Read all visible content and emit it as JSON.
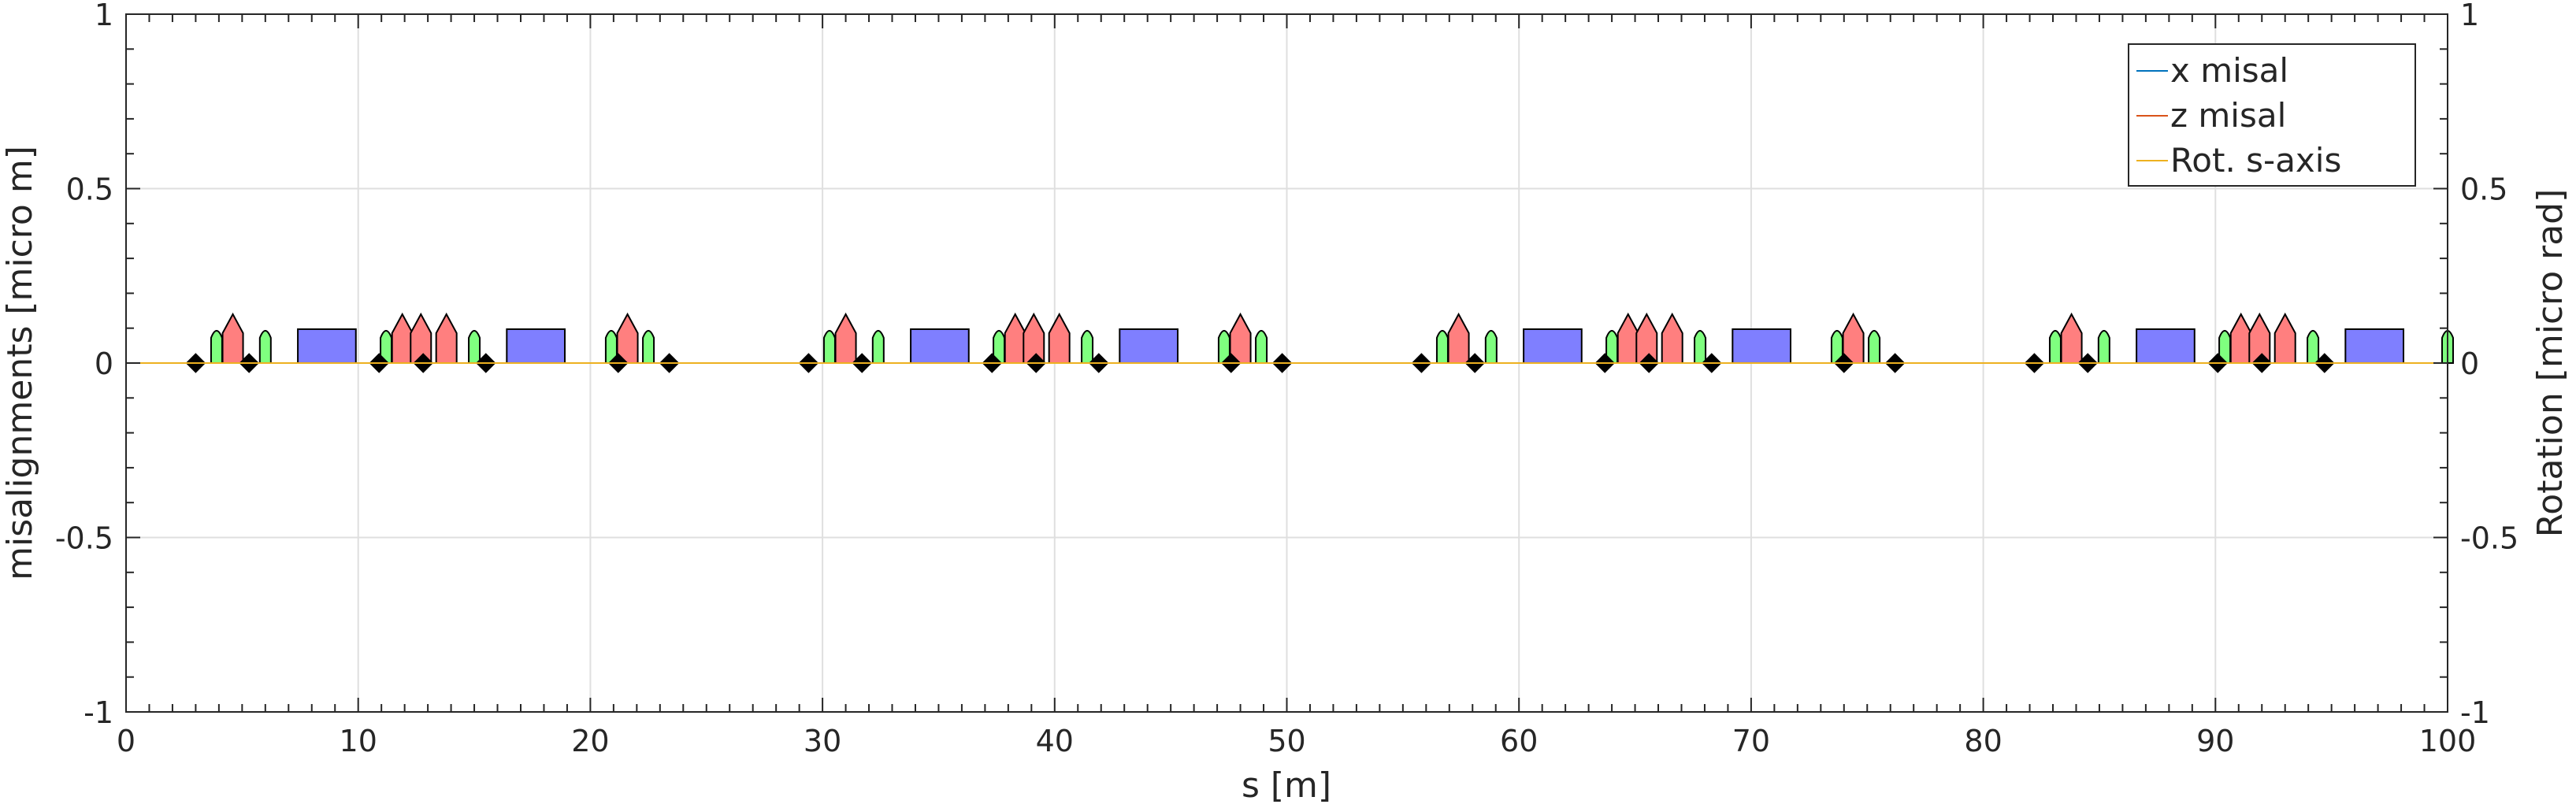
{
  "chart_data": {
    "type": "line",
    "xlabel": "s [m]",
    "ylabel_left": "misalignments [micro m]",
    "ylabel_right": "Rotation [micro rad]",
    "xlim": [
      0,
      100
    ],
    "ylim_left": [
      -1,
      1
    ],
    "ylim_right": [
      -1,
      1
    ],
    "xticks": [
      0,
      10,
      20,
      30,
      40,
      50,
      60,
      70,
      80,
      90,
      100
    ],
    "xtick_labels": [
      "0",
      "10",
      "20",
      "30",
      "40",
      "50",
      "60",
      "70",
      "80",
      "90",
      "100"
    ],
    "yticks": [
      1,
      0.5,
      0,
      -0.5,
      -1
    ],
    "ytick_labels_left": [
      "1",
      "0.5",
      "0",
      "-0.5",
      "-1"
    ],
    "ytick_labels_right": [
      "1",
      "0.5",
      "0",
      "-0.5",
      "-1"
    ],
    "grid": true,
    "legend_position": "top-right",
    "series": [
      {
        "name": "x misal",
        "color": "#0072bd",
        "x": [
          0,
          100
        ],
        "y": [
          0,
          0
        ]
      },
      {
        "name": "z misal",
        "color": "#d95319",
        "x": [
          0,
          100
        ],
        "y": [
          0,
          0
        ]
      },
      {
        "name": "Rot. s-axis",
        "color": "#edb120",
        "x": [
          0,
          100
        ],
        "y": [
          0,
          0
        ]
      }
    ],
    "lattice": {
      "colors": {
        "dipole": "#7f7fff",
        "quadrupole": "#ff7f7f",
        "sextupole": "#7fff7f",
        "monitor": "#000000"
      },
      "dipoles": [
        7.4,
        16.4,
        33.8,
        42.8,
        60.2,
        69.2,
        86.6,
        95.6
      ],
      "quadrupoles": [
        4.6,
        11.9,
        12.7,
        13.8,
        21.6,
        31.0,
        38.3,
        39.1,
        40.2,
        48.0,
        57.4,
        64.7,
        65.5,
        66.6,
        74.4,
        83.8,
        91.1,
        91.9,
        93.0
      ],
      "sextupoles": [
        3.9,
        6.0,
        11.2,
        15.0,
        20.9,
        22.5,
        30.3,
        32.4,
        37.6,
        41.4,
        47.3,
        48.9,
        56.7,
        58.8,
        64.0,
        67.8,
        73.7,
        75.3,
        83.1,
        85.2,
        90.4,
        94.2,
        100.0
      ],
      "monitors": [
        3.0,
        5.3,
        10.9,
        12.8,
        15.5,
        21.2,
        23.4,
        29.4,
        31.7,
        37.3,
        39.2,
        41.9,
        47.6,
        49.8,
        55.8,
        58.1,
        63.7,
        65.6,
        68.3,
        74.0,
        76.2,
        82.2,
        84.5,
        90.1,
        92.0,
        94.7
      ]
    }
  }
}
